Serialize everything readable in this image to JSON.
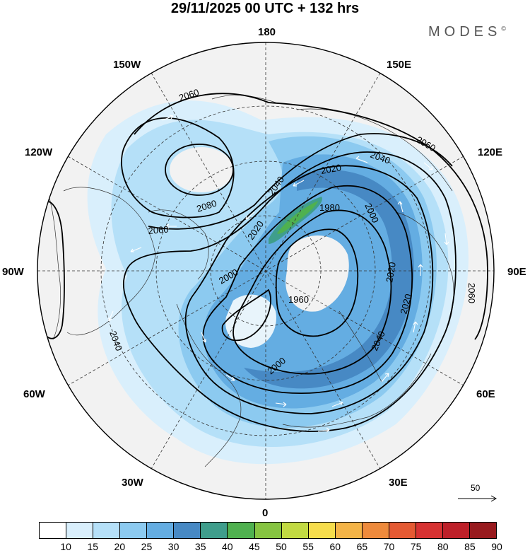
{
  "title": "29/11/2025  00 UTC  + 132 hrs",
  "brand": "MODES",
  "brand_mark": "©",
  "longitude_labels": {
    "n180": "180",
    "w150": "150W",
    "e150": "150E",
    "w120": "120W",
    "e120": "120E",
    "w90": "90W",
    "e90": "90E",
    "w60": "60W",
    "e60": "60E",
    "w30": "30W",
    "e30": "30E",
    "s0": "0"
  },
  "contour_labels": [
    "2060",
    "2060",
    "2040",
    "2020",
    "1980",
    "2000",
    "2040",
    "2020",
    "2060",
    "2080",
    "2060",
    "2020",
    "2000",
    "1960",
    "2020",
    "2040",
    "2040",
    "2000"
  ],
  "reference_vector": {
    "label": "50"
  },
  "colorbar": {
    "ticks": [
      "10",
      "15",
      "20",
      "25",
      "30",
      "35",
      "40",
      "45",
      "50",
      "55",
      "60",
      "65",
      "70",
      "75",
      "80",
      "85",
      "90"
    ],
    "colors": [
      "#ffffff",
      "#d9effc",
      "#b5e0f8",
      "#8ccaf0",
      "#64ade2",
      "#4789c4",
      "#3f9e8c",
      "#4fb14f",
      "#86c441",
      "#c2da42",
      "#f6dd4c",
      "#f4b447",
      "#ee8a3c",
      "#e55a33",
      "#d73232",
      "#be2029",
      "#981a1e"
    ]
  }
}
